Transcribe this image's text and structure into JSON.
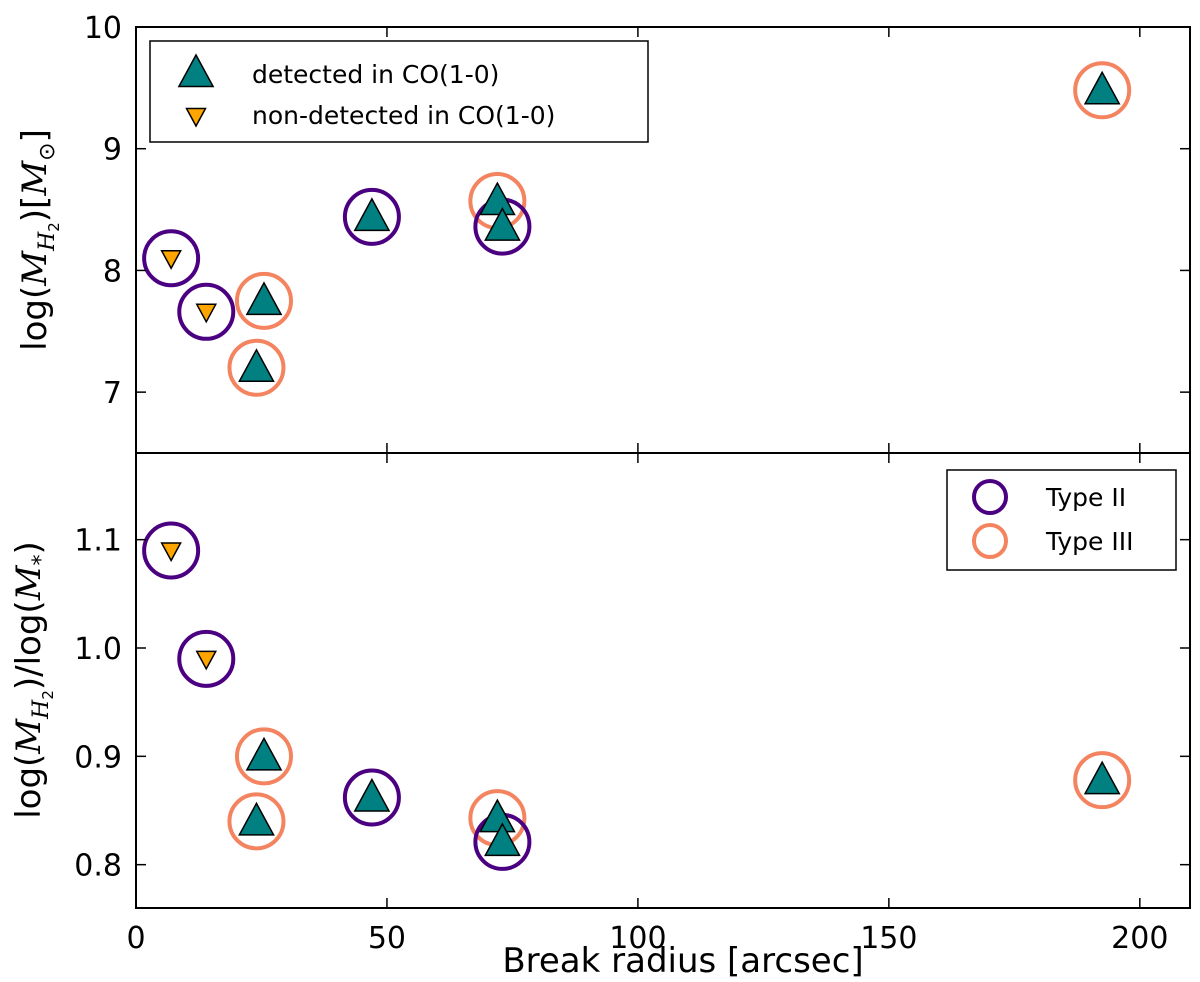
{
  "chart_data": [
    {
      "type": "scatter",
      "panel": "top",
      "xlim": [
        0,
        210
      ],
      "ylim": [
        6.5,
        10
      ],
      "yticks": [
        7,
        8,
        9,
        10
      ],
      "ylabel": {
        "prefix": "log(",
        "math_base": "M",
        "math_sub": "H",
        "math_subsub": "2",
        "middle": ")[",
        "math_unit": "M",
        "unit_sub": "⊙",
        "suffix": "]"
      },
      "series": [
        {
          "name": "detected in CO(1-0)",
          "marker": "triangle-up",
          "color": "#008080",
          "points": [
            {
              "x": 24,
              "y": 7.2,
              "type": "III"
            },
            {
              "x": 25.5,
              "y": 7.75,
              "type": "III"
            },
            {
              "x": 47,
              "y": 8.44,
              "type": "II"
            },
            {
              "x": 72,
              "y": 8.57,
              "type": "III"
            },
            {
              "x": 73,
              "y": 8.36,
              "type": "II"
            },
            {
              "x": 192.5,
              "y": 9.48,
              "type": "III"
            }
          ]
        },
        {
          "name": "non-detected in CO(1-0)",
          "marker": "triangle-down",
          "color": "#ffa500",
          "points": [
            {
              "x": 7,
              "y": 8.1,
              "type": "II"
            },
            {
              "x": 14,
              "y": 7.66,
              "type": "II"
            }
          ]
        }
      ],
      "legend": {
        "placement": "top-left",
        "entries": [
          "detected in CO(1-0)",
          "non-detected in CO(1-0)"
        ]
      }
    },
    {
      "type": "scatter",
      "panel": "bottom",
      "xlim": [
        0,
        210
      ],
      "ylim": [
        0.76,
        1.18
      ],
      "xticks": [
        0,
        50,
        100,
        150,
        200
      ],
      "yticks": [
        0.8,
        0.9,
        1.0,
        1.1
      ],
      "xlabel": "Break radius [arcsec]",
      "ylabel": {
        "prefix": "log(",
        "math_base": "M",
        "math_sub": "H",
        "math_subsub": "2",
        "middle": ")/log(",
        "math_unit": "M",
        "unit_sub": "*",
        "suffix": ")"
      },
      "series": [
        {
          "name": "detected in CO(1-0)",
          "marker": "triangle-up",
          "color": "#008080",
          "points": [
            {
              "x": 24,
              "y": 0.84,
              "type": "III"
            },
            {
              "x": 25.5,
              "y": 0.9,
              "type": "III"
            },
            {
              "x": 47,
              "y": 0.862,
              "type": "II"
            },
            {
              "x": 72,
              "y": 0.843,
              "type": "III"
            },
            {
              "x": 73,
              "y": 0.821,
              "type": "II"
            },
            {
              "x": 192.5,
              "y": 0.878,
              "type": "III"
            }
          ]
        },
        {
          "name": "non-detected in CO(1-0)",
          "marker": "triangle-down",
          "color": "#ffa500",
          "points": [
            {
              "x": 7,
              "y": 1.09,
              "type": "II"
            },
            {
              "x": 14,
              "y": 0.99,
              "type": "II"
            }
          ]
        }
      ],
      "ring_types": [
        {
          "key": "II",
          "label": "Type II",
          "color": "#4b0082"
        },
        {
          "key": "III",
          "label": "Type III",
          "color": "#f4845f"
        }
      ],
      "legend": {
        "placement": "top-right",
        "entries": [
          "Type II",
          "Type III"
        ]
      }
    }
  ]
}
